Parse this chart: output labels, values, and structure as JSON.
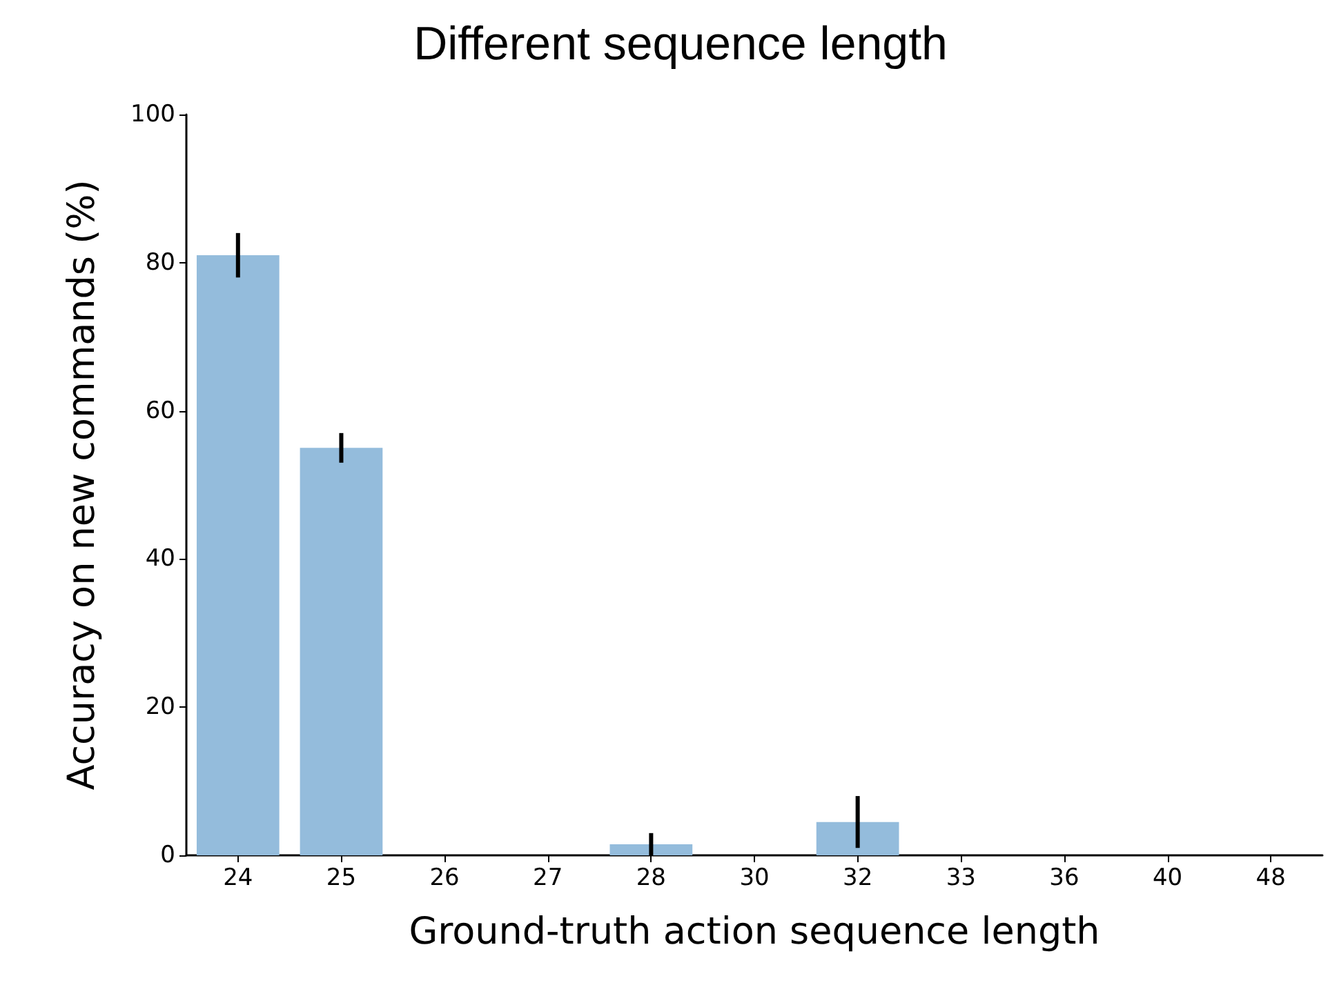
{
  "chart_data": {
    "type": "bar",
    "title": "Different sequence length",
    "xlabel": "Ground-truth action sequence length",
    "ylabel": "Accuracy on new commands (%)",
    "categories": [
      "24",
      "25",
      "26",
      "27",
      "28",
      "30",
      "32",
      "33",
      "36",
      "40",
      "48"
    ],
    "values": [
      81,
      55,
      0,
      0,
      1.5,
      0,
      4.5,
      0,
      0,
      0,
      0
    ],
    "errors": [
      [
        78,
        84
      ],
      [
        53,
        57
      ],
      null,
      null,
      [
        0,
        3
      ],
      null,
      [
        1,
        8
      ],
      null,
      null,
      null,
      null
    ],
    "color": "#94bcdc",
    "ylim": [
      0,
      100
    ],
    "yticks": [
      0,
      20,
      40,
      60,
      80,
      100
    ],
    "grid": false
  }
}
